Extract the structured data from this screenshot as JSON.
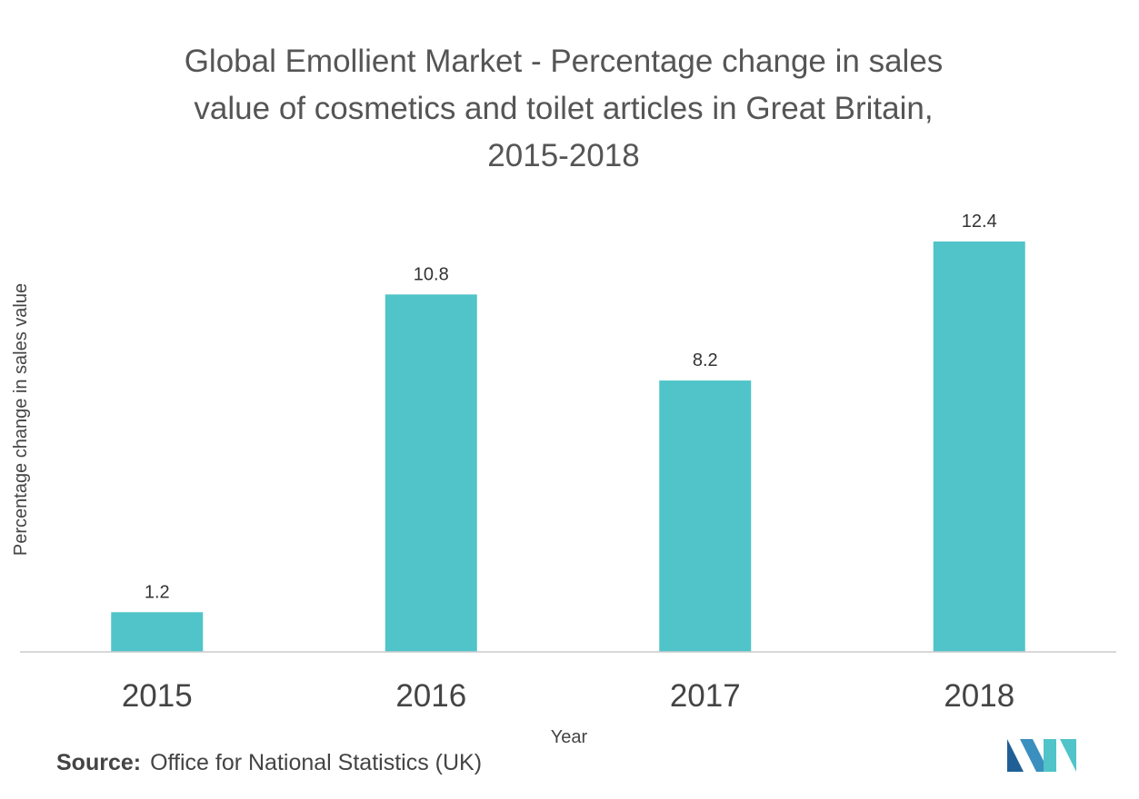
{
  "chart_data": {
    "type": "bar",
    "title_lines": [
      "Global Emollient Market - Percentage change in sales",
      "value of cosmetics and toilet articles in Great Britain,",
      "2015-2018"
    ],
    "categories": [
      "2015",
      "2016",
      "2017",
      "2018"
    ],
    "values": [
      1.2,
      10.8,
      8.2,
      12.4
    ],
    "value_labels": [
      "1.2",
      "10.8",
      "8.2",
      "12.4"
    ],
    "xlabel": "Year",
    "ylabel": "Percentage change in sales value",
    "ylim": [
      0,
      12.4
    ],
    "grid": false,
    "bar_color": "#50c4c9",
    "axis_color": "#cccccc"
  },
  "source": {
    "key": "Source:",
    "text": "Office for National Statistics (UK)"
  },
  "logo": {
    "icon": "mordor-intelligence-logo-icon",
    "colors": [
      "#1f5f96",
      "#50c4c9"
    ]
  }
}
